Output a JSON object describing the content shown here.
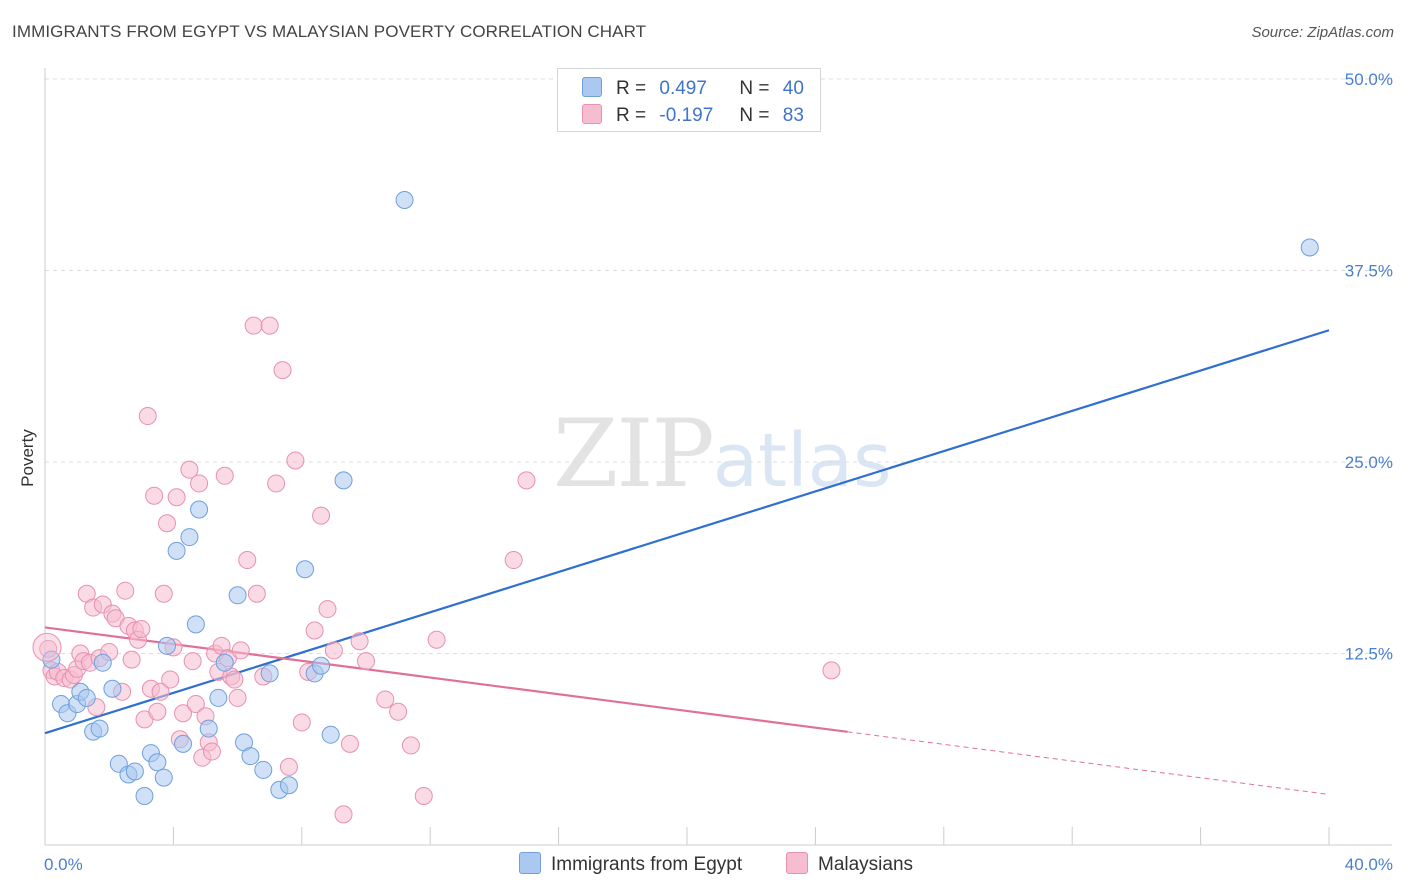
{
  "header": {
    "title": "IMMIGRANTS FROM EGYPT VS MALAYSIAN POVERTY CORRELATION CHART",
    "source": "Source: ZipAtlas.com"
  },
  "watermark": {
    "zip": "ZIP",
    "atlas": "atlas"
  },
  "legend": {
    "rows": [
      {
        "r_label": "R =",
        "r_value": "0.497",
        "n_label": "N =",
        "n_value": "40"
      },
      {
        "r_label": "R =",
        "r_value": "-0.197",
        "n_label": "N =",
        "n_value": "83"
      }
    ]
  },
  "bottom_legend": {
    "series1": "Immigrants from Egypt",
    "series2": "Malaysians"
  },
  "colors": {
    "blue_fill": "#aac8f0",
    "blue_stroke": "#6f9fdc",
    "blue_line": "#2e6fcf",
    "pink_fill": "#f6bcd0",
    "pink_stroke": "#e890b0",
    "pink_line": "#e0709a",
    "grid": "#dddddd",
    "tick_text": "#4a7fd0"
  },
  "chart_data": {
    "type": "scatter",
    "title": "IMMIGRANTS FROM EGYPT VS MALAYSIAN POVERTY CORRELATION CHART",
    "xlabel": "",
    "ylabel": "Poverty",
    "xlim": [
      0,
      40
    ],
    "ylim": [
      0,
      50
    ],
    "x_tick_labels": [
      "0.0%",
      "40.0%"
    ],
    "y_ticks": [
      12.5,
      25.0,
      37.5,
      50.0
    ],
    "y_tick_labels": [
      "12.5%",
      "25.0%",
      "37.5%",
      "50.0%"
    ],
    "series": [
      {
        "name": "Immigrants from Egypt",
        "r": 0.497,
        "n": 40,
        "trend": {
          "x": [
            0,
            40
          ],
          "y": [
            7.3,
            33.6
          ],
          "dashed_from_x": null
        },
        "points": [
          [
            0.2,
            12.1
          ],
          [
            0.5,
            9.2
          ],
          [
            0.7,
            8.6
          ],
          [
            1.0,
            9.2
          ],
          [
            1.1,
            10.0
          ],
          [
            1.3,
            9.6
          ],
          [
            1.5,
            7.4
          ],
          [
            1.7,
            7.6
          ],
          [
            1.8,
            11.9
          ],
          [
            2.1,
            10.2
          ],
          [
            2.3,
            5.3
          ],
          [
            2.6,
            4.6
          ],
          [
            2.8,
            4.8
          ],
          [
            3.1,
            3.2
          ],
          [
            3.3,
            6.0
          ],
          [
            3.5,
            5.4
          ],
          [
            3.7,
            4.4
          ],
          [
            3.8,
            13.0
          ],
          [
            4.1,
            19.2
          ],
          [
            4.3,
            6.6
          ],
          [
            4.5,
            20.1
          ],
          [
            4.7,
            14.4
          ],
          [
            4.8,
            21.9
          ],
          [
            5.1,
            7.6
          ],
          [
            5.4,
            9.6
          ],
          [
            5.6,
            11.9
          ],
          [
            6.0,
            16.3
          ],
          [
            6.2,
            6.7
          ],
          [
            6.4,
            5.8
          ],
          [
            6.8,
            4.9
          ],
          [
            7.0,
            11.2
          ],
          [
            7.3,
            3.6
          ],
          [
            7.6,
            3.9
          ],
          [
            8.1,
            18.0
          ],
          [
            8.4,
            11.2
          ],
          [
            8.6,
            11.7
          ],
          [
            8.9,
            7.2
          ],
          [
            9.3,
            23.8
          ],
          [
            11.2,
            42.1
          ],
          [
            39.4,
            39.0
          ]
        ]
      },
      {
        "name": "Malaysians",
        "r": -0.197,
        "n": 83,
        "trend": {
          "x": [
            0,
            40
          ],
          "y": [
            14.2,
            3.3
          ],
          "dashed_from_x": 25.0
        },
        "points": [
          [
            0.1,
            12.8
          ],
          [
            0.2,
            11.4
          ],
          [
            0.3,
            11.0
          ],
          [
            0.4,
            11.3
          ],
          [
            0.6,
            10.9
          ],
          [
            0.8,
            10.8
          ],
          [
            0.9,
            11.1
          ],
          [
            1.0,
            11.5
          ],
          [
            1.1,
            12.5
          ],
          [
            1.2,
            12.0
          ],
          [
            1.3,
            16.4
          ],
          [
            1.4,
            11.9
          ],
          [
            1.5,
            15.5
          ],
          [
            1.6,
            9.0
          ],
          [
            1.7,
            12.2
          ],
          [
            1.8,
            15.7
          ],
          [
            2.0,
            12.6
          ],
          [
            2.1,
            15.1
          ],
          [
            2.2,
            14.8
          ],
          [
            2.4,
            10.0
          ],
          [
            2.5,
            16.6
          ],
          [
            2.6,
            14.3
          ],
          [
            2.7,
            12.1
          ],
          [
            2.8,
            14.0
          ],
          [
            2.9,
            13.4
          ],
          [
            3.0,
            14.1
          ],
          [
            3.1,
            8.2
          ],
          [
            3.2,
            28.0
          ],
          [
            3.3,
            10.2
          ],
          [
            3.4,
            22.8
          ],
          [
            3.5,
            8.7
          ],
          [
            3.6,
            10.0
          ],
          [
            3.7,
            16.4
          ],
          [
            3.8,
            21.0
          ],
          [
            3.9,
            10.8
          ],
          [
            4.0,
            12.9
          ],
          [
            4.1,
            22.7
          ],
          [
            4.2,
            6.9
          ],
          [
            4.3,
            8.6
          ],
          [
            4.5,
            24.5
          ],
          [
            4.6,
            12.0
          ],
          [
            4.7,
            9.2
          ],
          [
            4.8,
            23.6
          ],
          [
            4.9,
            5.7
          ],
          [
            5.0,
            8.4
          ],
          [
            5.1,
            6.7
          ],
          [
            5.2,
            6.1
          ],
          [
            5.3,
            12.5
          ],
          [
            5.4,
            11.3
          ],
          [
            5.5,
            13.0
          ],
          [
            5.6,
            24.1
          ],
          [
            5.7,
            12.2
          ],
          [
            5.8,
            11.0
          ],
          [
            5.9,
            10.8
          ],
          [
            6.0,
            9.6
          ],
          [
            6.1,
            12.7
          ],
          [
            6.3,
            18.6
          ],
          [
            6.5,
            33.9
          ],
          [
            6.6,
            16.4
          ],
          [
            6.8,
            11.0
          ],
          [
            7.0,
            33.9
          ],
          [
            7.2,
            23.6
          ],
          [
            7.4,
            31.0
          ],
          [
            7.6,
            5.1
          ],
          [
            7.8,
            25.1
          ],
          [
            8.0,
            8.0
          ],
          [
            8.2,
            11.3
          ],
          [
            8.4,
            14.0
          ],
          [
            8.6,
            21.5
          ],
          [
            8.8,
            15.4
          ],
          [
            9.0,
            12.7
          ],
          [
            9.3,
            2.0
          ],
          [
            9.5,
            6.6
          ],
          [
            9.8,
            13.3
          ],
          [
            10.0,
            12.0
          ],
          [
            10.6,
            9.5
          ],
          [
            11.0,
            8.7
          ],
          [
            11.4,
            6.5
          ],
          [
            11.8,
            3.2
          ],
          [
            12.2,
            13.4
          ],
          [
            14.6,
            18.6
          ],
          [
            15.0,
            23.8
          ],
          [
            24.5,
            11.4
          ]
        ]
      }
    ]
  }
}
